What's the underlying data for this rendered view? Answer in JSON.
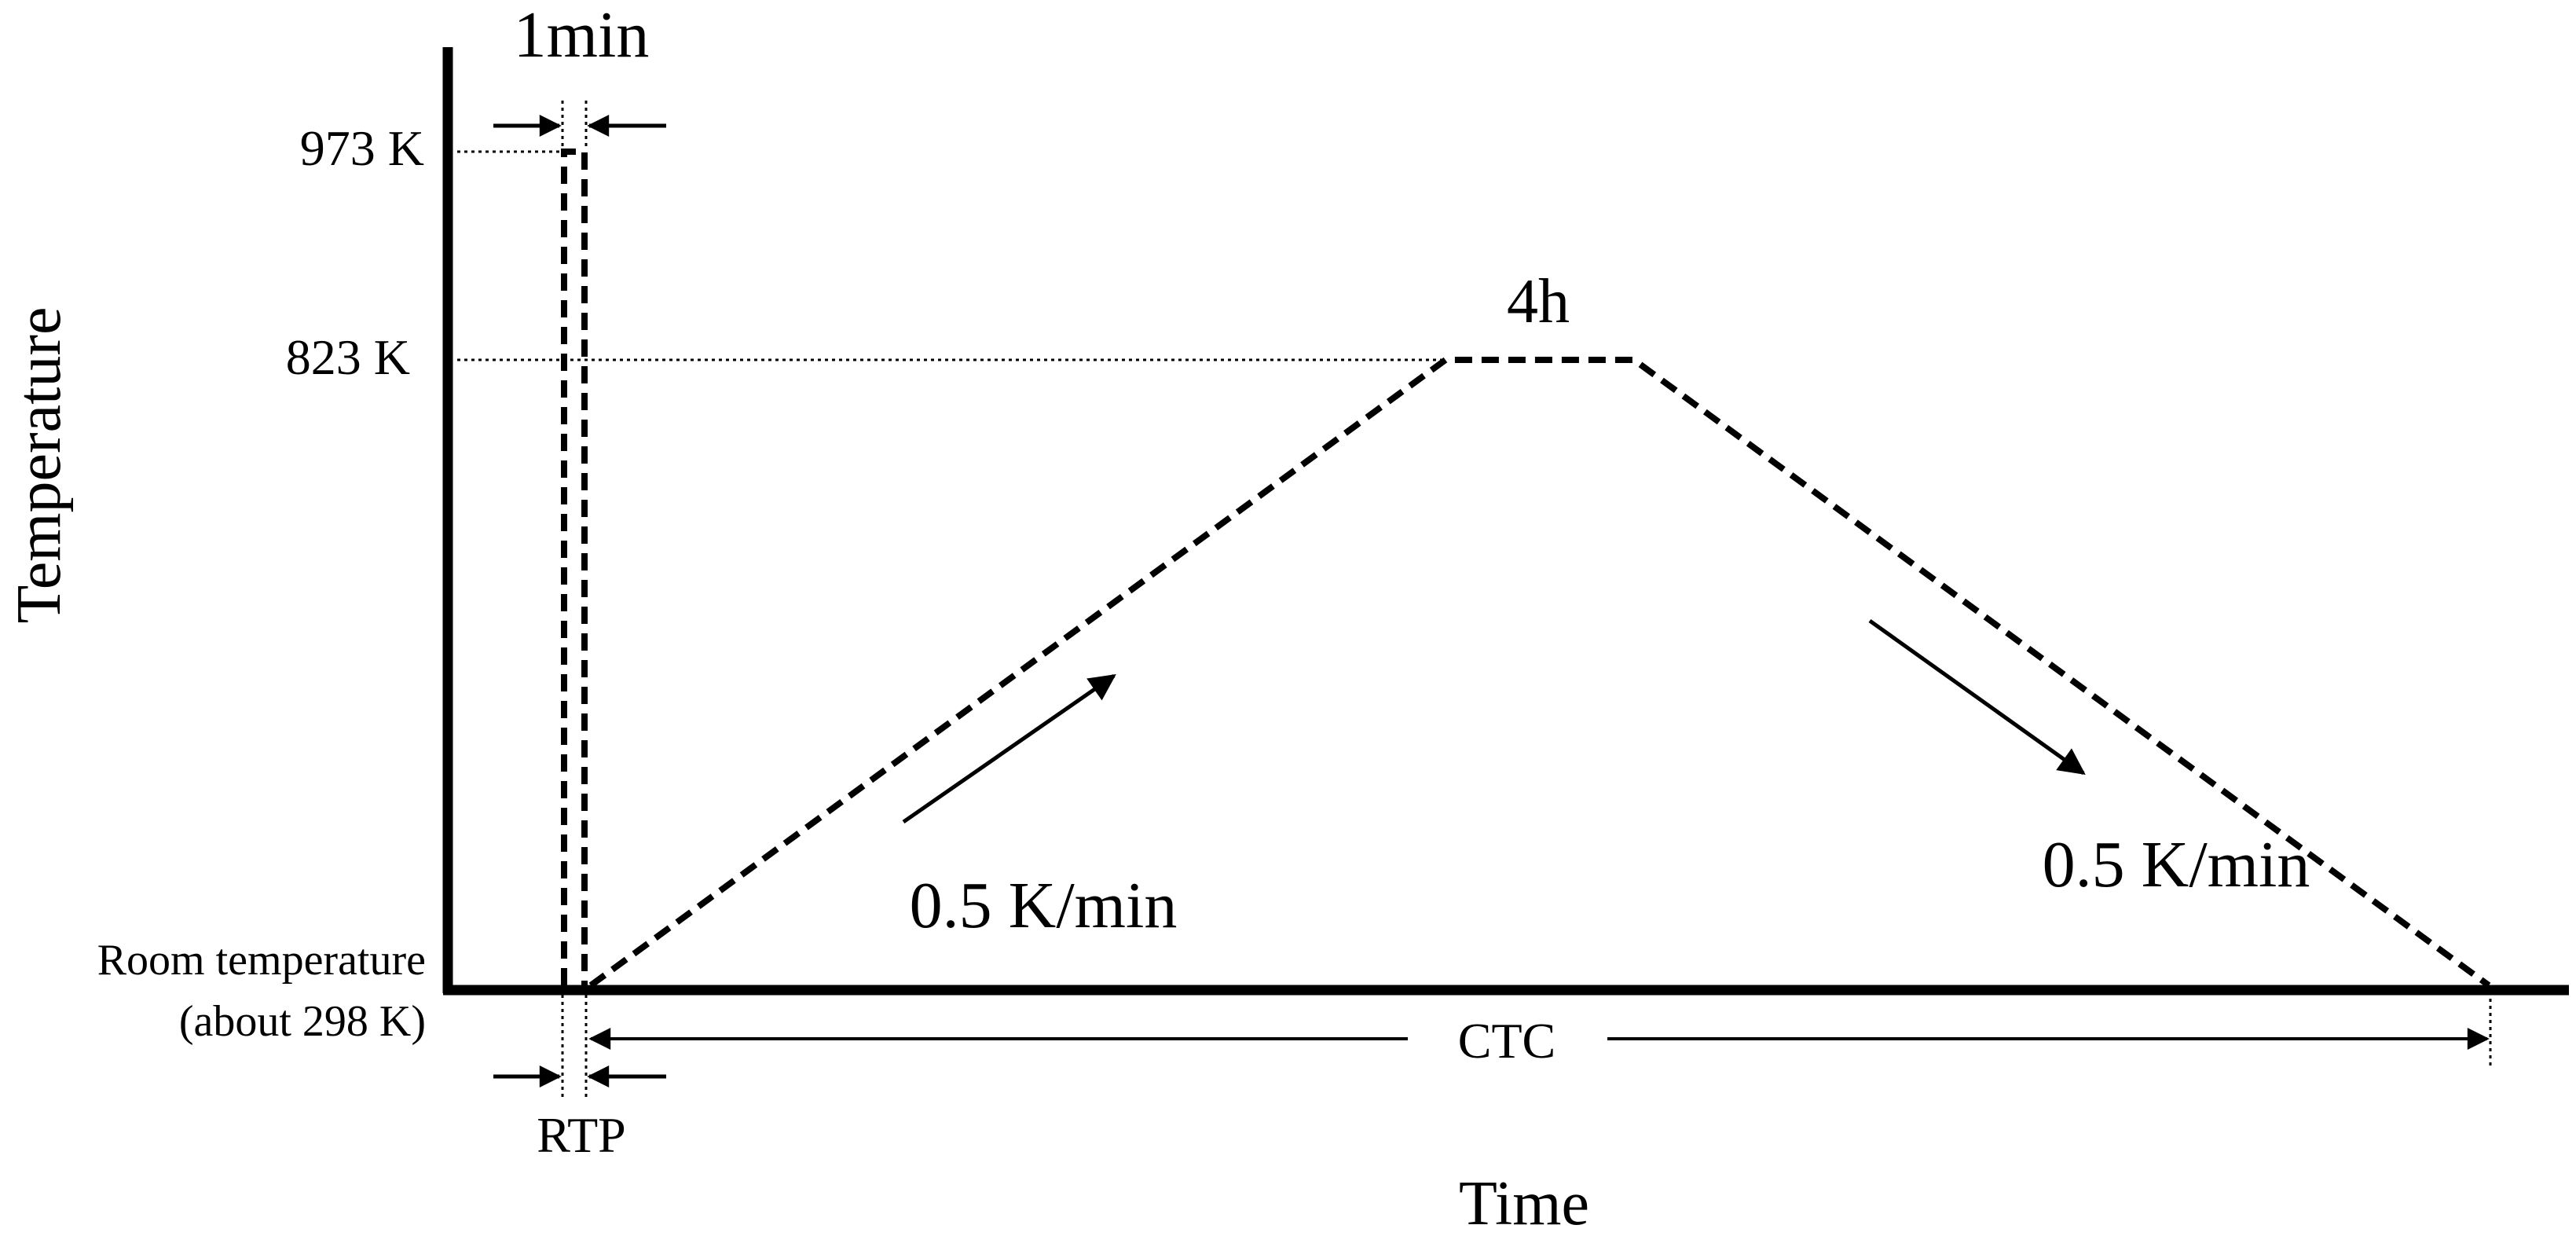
{
  "axes": {
    "x_label": "Time",
    "y_label": "Temperature"
  },
  "y_levels": {
    "high": "973 K",
    "mid": "823 K",
    "room_line1": "Room temperature",
    "room_line2": "(about 298 K)"
  },
  "annotations": {
    "rtp_duration": "1min",
    "hold_duration": "4h",
    "heating_rate": "0.5 K/min",
    "cooling_rate": "0.5 K/min",
    "rtp_label": "RTP",
    "ctc_label": "CTC"
  },
  "colors": {
    "ink": "#000000",
    "background": "#ffffff"
  }
}
